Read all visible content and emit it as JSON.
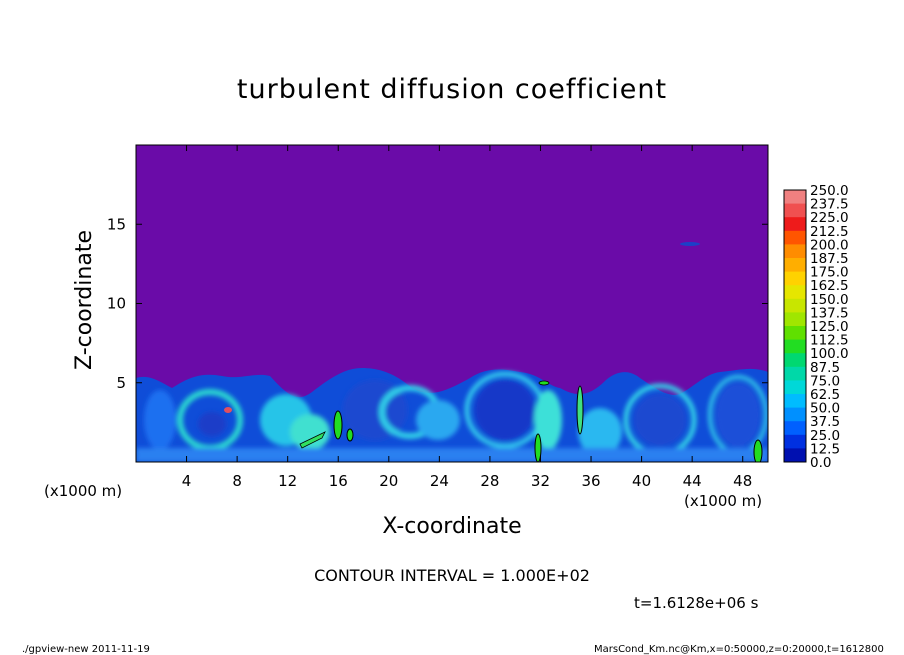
{
  "chart_data": {
    "type": "heatmap",
    "title": "turbulent diffusion coefficient",
    "xlabel": "X-coordinate",
    "ylabel": "Z-coordinate",
    "x_unit": "(x1000 m)",
    "x_ticks": [
      "4",
      "8",
      "12",
      "16",
      "20",
      "24",
      "28",
      "32",
      "36",
      "40",
      "44",
      "48"
    ],
    "x_tick_values": [
      4,
      8,
      12,
      16,
      20,
      24,
      28,
      32,
      36,
      40,
      44,
      48
    ],
    "xlim": [
      0,
      50
    ],
    "y_ticks": [
      "5",
      "10",
      "15"
    ],
    "y_tick_values": [
      5,
      10,
      15
    ],
    "ylim": [
      0,
      20
    ],
    "colorbar": {
      "levels": [
        "250.0",
        "237.5",
        "225.0",
        "212.5",
        "200.0",
        "187.5",
        "175.0",
        "162.5",
        "150.0",
        "137.5",
        "125.0",
        "112.5",
        "100.0",
        "87.5",
        "75.0",
        "62.5",
        "50.0",
        "37.5",
        "25.0",
        "12.5",
        "0.0"
      ],
      "colors": [
        "#f08080",
        "#f05050",
        "#ee1b1b",
        "#ff5500",
        "#ff8c00",
        "#ffae00",
        "#ffd200",
        "#e6e600",
        "#c8e600",
        "#a0e600",
        "#60e000",
        "#22dd22",
        "#00d870",
        "#00d8a8",
        "#00d8d8",
        "#00bcff",
        "#0090ff",
        "#0060ff",
        "#0030e0",
        "#0010b0",
        "#6a0ba8"
      ]
    },
    "background_color": "#6a0ba8",
    "note": "CONTOUR INTERVAL = 1.000E+02",
    "time": "t=1.6128e+06 s"
  },
  "footer": {
    "left": "./gpview-new  2011-11-19",
    "right": "MarsCond_Km.nc@Km,x=0:50000,z=0:20000,t=1612800"
  }
}
